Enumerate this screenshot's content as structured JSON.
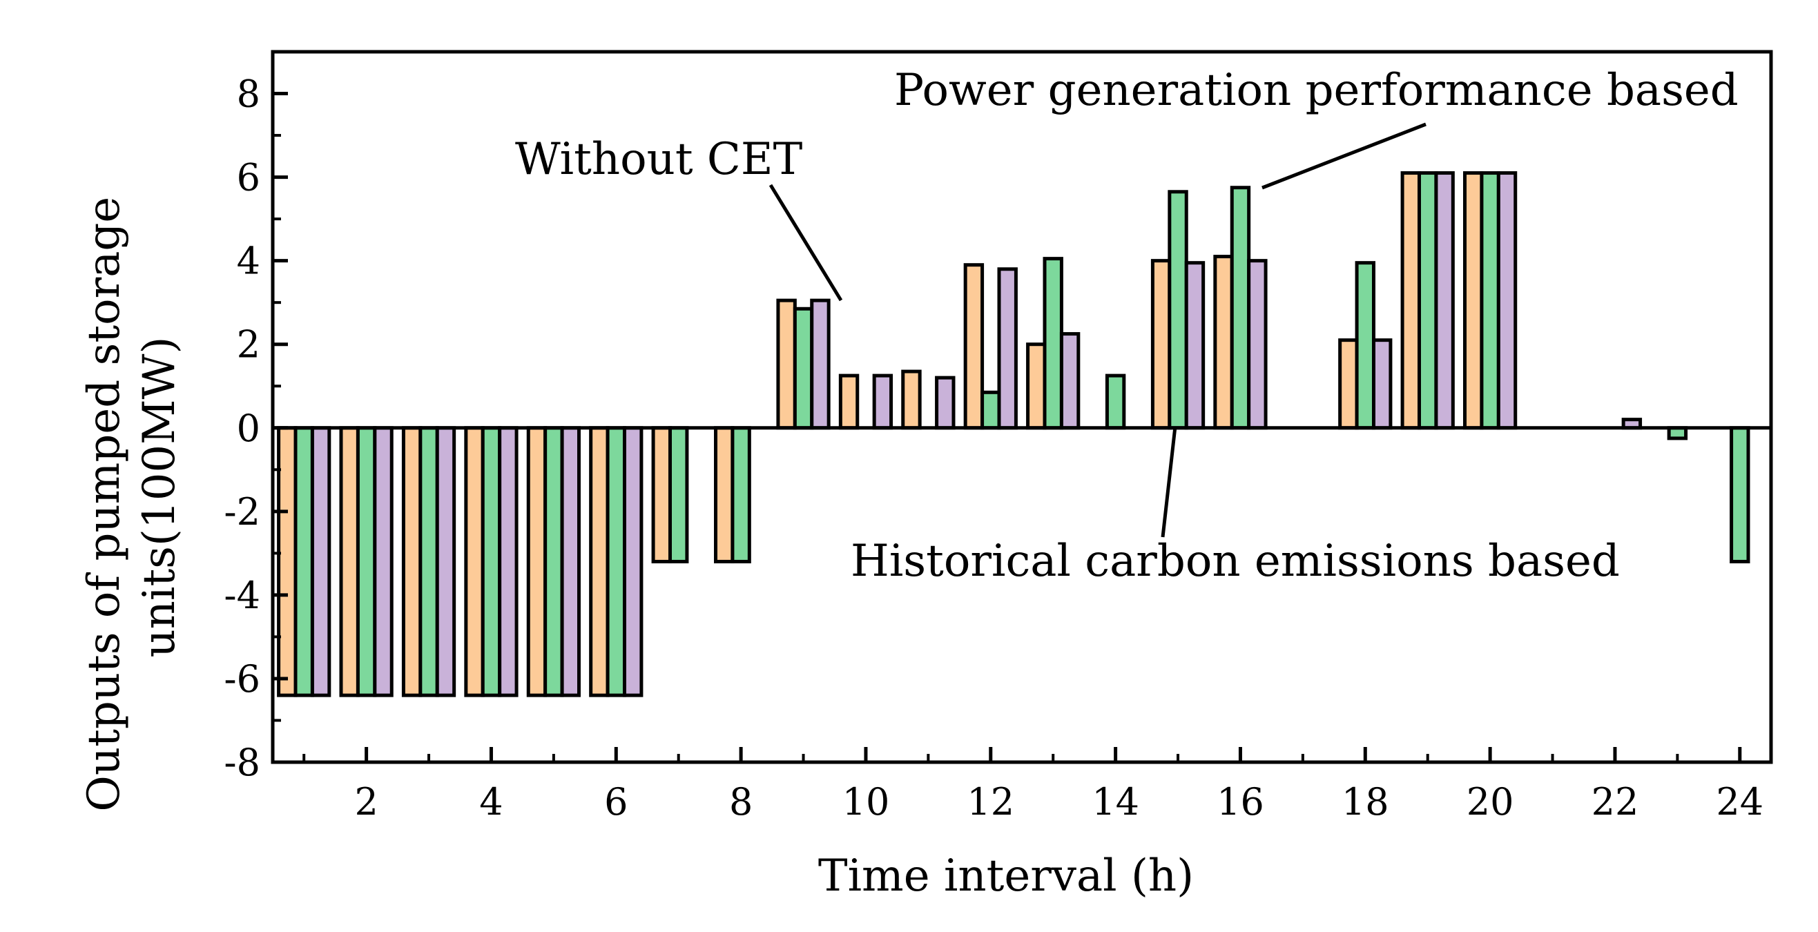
{
  "chart_data": {
    "type": "bar",
    "title": "",
    "xlabel": "Time interval (h)",
    "ylabel": "Outputs of pumped storage units(100MW)",
    "ylabel_lines": [
      "Outputs of pumped storage",
      "units(100MW)"
    ],
    "xlim": [
      0.5,
      24.5
    ],
    "ylim": [
      -8,
      9
    ],
    "categories": [
      1,
      2,
      3,
      4,
      5,
      6,
      7,
      8,
      9,
      10,
      11,
      12,
      13,
      14,
      15,
      16,
      17,
      18,
      19,
      20,
      21,
      22,
      23,
      24
    ],
    "x_ticks": [
      2,
      4,
      6,
      8,
      10,
      12,
      14,
      16,
      18,
      20,
      22,
      24
    ],
    "x_tick_labels": [
      "2",
      "4",
      "6",
      "8",
      "10",
      "12",
      "14",
      "16",
      "18",
      "20",
      "22",
      "24"
    ],
    "y_ticks": [
      -8,
      -6,
      -4,
      -2,
      0,
      2,
      4,
      6,
      8
    ],
    "y_tick_labels": [
      "-8",
      "-6",
      "-4",
      "-2",
      "0",
      "2",
      "4",
      "6",
      "8"
    ],
    "series": [
      {
        "name": "Without CET",
        "color": "#fdcb98",
        "values": [
          -6.4,
          -6.4,
          -6.4,
          -6.4,
          -6.4,
          -6.4,
          -3.2,
          -3.2,
          3.05,
          1.25,
          1.35,
          3.9,
          2.0,
          0,
          4.0,
          4.1,
          0,
          2.1,
          6.1,
          6.1,
          0,
          0,
          0,
          0
        ]
      },
      {
        "name": "Power generation performance based",
        "color": "#7dd89c",
        "values": [
          -6.4,
          -6.4,
          -6.4,
          -6.4,
          -6.4,
          -6.4,
          -3.2,
          -3.2,
          2.85,
          0,
          0,
          0.85,
          4.05,
          1.25,
          5.65,
          5.75,
          0,
          3.95,
          6.1,
          6.1,
          0,
          0,
          -0.25,
          -3.2
        ]
      },
      {
        "name": "Historical carbon emissions based",
        "color": "#c9b2d9",
        "values": [
          -6.4,
          -6.4,
          -6.4,
          -6.4,
          -6.4,
          -6.4,
          0,
          0,
          3.05,
          1.25,
          1.2,
          3.8,
          2.25,
          0,
          3.95,
          4.0,
          0,
          2.1,
          6.1,
          6.1,
          0,
          0.2,
          0,
          0
        ]
      }
    ],
    "annotations": [
      {
        "text": "Without CET",
        "points_to": "interval 9"
      },
      {
        "text": "Power generation performance based",
        "points_to": "interval 16"
      },
      {
        "text": "Historical carbon emissions based",
        "points_to": "interval 15"
      }
    ],
    "legend": "none",
    "grid": false
  }
}
